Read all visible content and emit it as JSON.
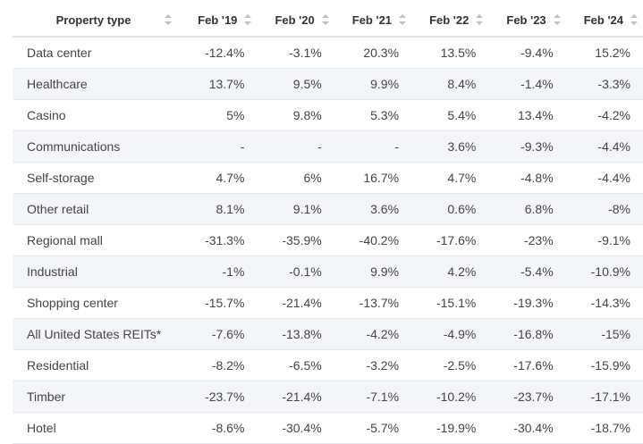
{
  "chart_data": {
    "type": "table",
    "header_label": "Property type",
    "columns": [
      "Feb '19",
      "Feb '20",
      "Feb '21",
      "Feb '22",
      "Feb '23",
      "Feb '24"
    ],
    "rows": [
      {
        "label": "Data center",
        "values": [
          "-12.4%",
          "-3.1%",
          "20.3%",
          "13.5%",
          "-9.4%",
          "15.2%"
        ]
      },
      {
        "label": "Healthcare",
        "values": [
          "13.7%",
          "9.5%",
          "9.9%",
          "8.4%",
          "-1.4%",
          "-3.3%"
        ]
      },
      {
        "label": "Casino",
        "values": [
          "5%",
          "9.8%",
          "5.3%",
          "5.4%",
          "13.4%",
          "-4.2%"
        ]
      },
      {
        "label": "Communications",
        "values": [
          "-",
          "-",
          "-",
          "3.6%",
          "-9.3%",
          "-4.4%"
        ]
      },
      {
        "label": "Self-storage",
        "values": [
          "4.7%",
          "6%",
          "16.7%",
          "4.7%",
          "-4.8%",
          "-4.4%"
        ]
      },
      {
        "label": "Other retail",
        "values": [
          "8.1%",
          "9.1%",
          "3.6%",
          "0.6%",
          "6.8%",
          "-8%"
        ]
      },
      {
        "label": "Regional mall",
        "values": [
          "-31.3%",
          "-35.9%",
          "-40.2%",
          "-17.6%",
          "-23%",
          "-9.1%"
        ]
      },
      {
        "label": "Industrial",
        "values": [
          "-1%",
          "-0.1%",
          "9.9%",
          "4.2%",
          "-5.4%",
          "-10.9%"
        ]
      },
      {
        "label": "Shopping center",
        "values": [
          "-15.7%",
          "-21.4%",
          "-13.7%",
          "-15.1%",
          "-19.3%",
          "-14.3%"
        ]
      },
      {
        "label": "All United States REITs*",
        "values": [
          "-7.6%",
          "-13.8%",
          "-4.2%",
          "-4.9%",
          "-16.8%",
          "-15%"
        ]
      },
      {
        "label": "Residential",
        "values": [
          "-8.2%",
          "-6.5%",
          "-3.2%",
          "-2.5%",
          "-17.6%",
          "-15.9%"
        ]
      },
      {
        "label": "Timber",
        "values": [
          "-23.7%",
          "-21.4%",
          "-7.1%",
          "-10.2%",
          "-23.7%",
          "-17.1%"
        ]
      },
      {
        "label": "Hotel",
        "values": [
          "-8.6%",
          "-30.4%",
          "-5.7%",
          "-19.9%",
          "-30.4%",
          "-18.7%"
        ]
      }
    ]
  },
  "colors": {
    "header_text": "#333333",
    "cell_text": "#444444",
    "alt_row_bg": "#f3f6f9",
    "sort_icon": "#b8c0c8"
  },
  "icons": {
    "sort": "sort-arrows-icon"
  }
}
